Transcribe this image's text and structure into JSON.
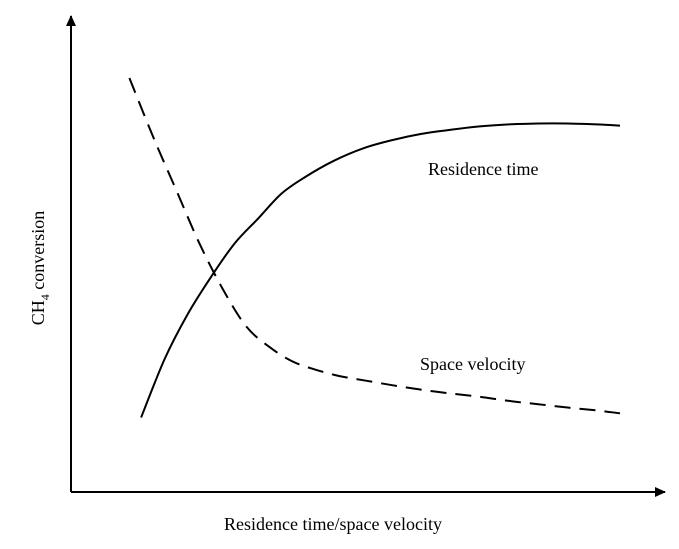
{
  "chart_data": {
    "type": "line",
    "xlabel": "Residence time/space velocity",
    "ylabel": {
      "prefix": "CH",
      "subscript": "4",
      "suffix": " conversion"
    },
    "xlim": [
      0,
      10
    ],
    "ylim": [
      0,
      10
    ],
    "grid": false,
    "legend": "none",
    "series": [
      {
        "name": "Residence time",
        "line_style": "solid",
        "color": "#000000",
        "x": [
          1.2,
          1.6,
          2.0,
          2.4,
          2.8,
          3.2,
          3.6,
          4.0,
          4.5,
          5.0,
          5.5,
          6.0,
          6.5,
          7.0,
          7.5,
          8.0,
          8.5,
          9.0,
          9.4
        ],
        "y": [
          1.8,
          3.2,
          4.3,
          5.2,
          6.0,
          6.6,
          7.2,
          7.6,
          8.0,
          8.3,
          8.5,
          8.65,
          8.75,
          8.83,
          8.88,
          8.9,
          8.9,
          8.88,
          8.85
        ]
      },
      {
        "name": "Space velocity",
        "line_style": "dashed",
        "color": "#000000",
        "x": [
          1.0,
          1.4,
          1.8,
          2.2,
          2.6,
          3.0,
          3.4,
          3.8,
          4.2,
          4.6,
          5.0,
          5.5,
          6.0,
          6.5,
          7.0,
          7.5,
          8.0,
          8.5,
          9.0,
          9.4
        ],
        "y": [
          10.0,
          8.6,
          7.3,
          6.0,
          4.9,
          4.0,
          3.5,
          3.15,
          2.95,
          2.8,
          2.7,
          2.58,
          2.47,
          2.38,
          2.3,
          2.2,
          2.12,
          2.04,
          1.97,
          1.9
        ]
      }
    ]
  }
}
